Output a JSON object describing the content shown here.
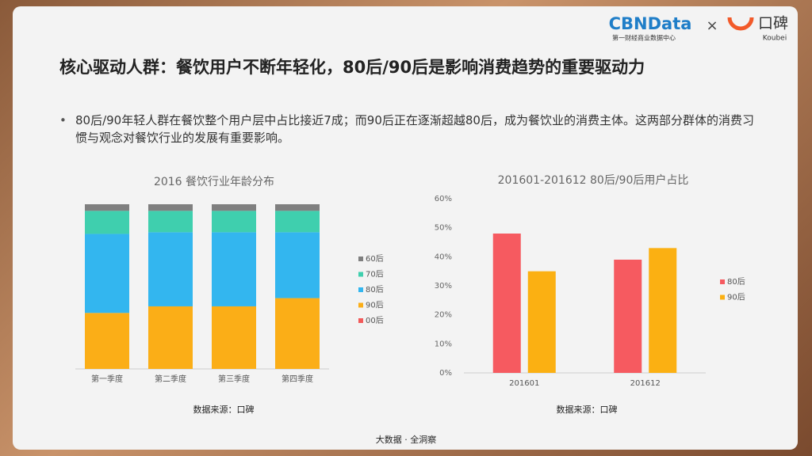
{
  "header": {
    "brand": "CBNData",
    "brand_sub": "第一财经商业数据中心",
    "times": "×",
    "partner": "口碑",
    "partner_en": "Koubei"
  },
  "title": "核心驱动人群：餐饮用户不断年轻化，80后/90后是影响消费趋势的重要驱动力",
  "bullet": "80后/90年轻人群在餐饮整个用户层中占比接近7成；而90后正在逐渐超越80后，成为餐饮业的消费主体。这两部分群体的消费习惯与观念对餐饮行业的发展有重要影响。",
  "footer": "大数据 · 全洞察",
  "chart_data": [
    {
      "type": "bar",
      "stacked": true,
      "title": "2016 餐饮行业年龄分布",
      "source": "数据来源：口碑",
      "categories": [
        "第一季度",
        "第二季度",
        "第三季度",
        "第四季度"
      ],
      "ylim": [
        0,
        100
      ],
      "series": [
        {
          "name": "00后",
          "color": "#f25a5a",
          "values": [
            0,
            0,
            0,
            0
          ]
        },
        {
          "name": "90后",
          "color": "#fbae17",
          "values": [
            34,
            38,
            38,
            43
          ]
        },
        {
          "name": "80后",
          "color": "#33b6ef",
          "values": [
            48,
            45,
            45,
            40
          ]
        },
        {
          "name": "70后",
          "color": "#3fcfae",
          "values": [
            14,
            13,
            13,
            13
          ]
        },
        {
          "name": "60后",
          "color": "#7f7f7f",
          "values": [
            4,
            4,
            4,
            4
          ]
        }
      ]
    },
    {
      "type": "bar",
      "stacked": false,
      "title": "201601-201612  80后/90后用户占比",
      "source": "数据来源：口碑",
      "categories": [
        "201601",
        "201612"
      ],
      "ylim": [
        0,
        60
      ],
      "yticks": [
        {
          "value": 0,
          "label": "0%"
        },
        {
          "value": 10,
          "label": "10%"
        },
        {
          "value": 20,
          "label": "20%"
        },
        {
          "value": 30,
          "label": "30%"
        },
        {
          "value": 40,
          "label": "40%"
        },
        {
          "value": 50,
          "label": "50%"
        },
        {
          "value": 60,
          "label": "60%"
        }
      ],
      "series": [
        {
          "name": "80后",
          "color": "#f65a60",
          "values": [
            48,
            39
          ]
        },
        {
          "name": "90后",
          "color": "#fbb012",
          "values": [
            35,
            43
          ]
        }
      ]
    }
  ]
}
